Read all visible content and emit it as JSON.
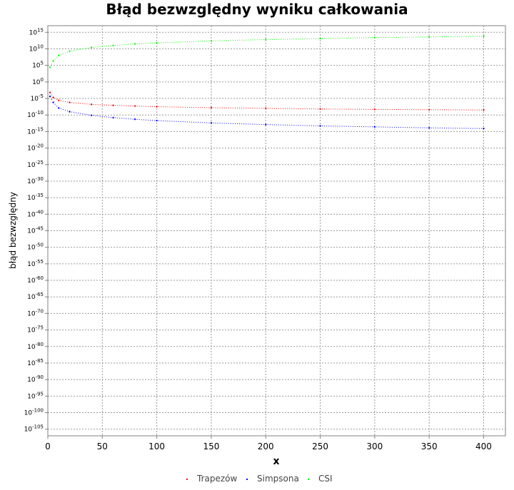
{
  "chart_data": {
    "type": "scatter",
    "title": "Błąd bezwzględny wyniku całkowania",
    "xlabel": "x",
    "ylabel": "błąd bezwzględny",
    "x_scale": "linear",
    "y_scale": "log",
    "xlim": [
      0,
      420
    ],
    "ylim_exponent": [
      -107,
      17
    ],
    "x_ticks": [
      0,
      50,
      100,
      150,
      200,
      250,
      300,
      350,
      400
    ],
    "y_ticks": [
      {
        "base": "10",
        "exp": "15"
      },
      {
        "base": "10",
        "exp": "10"
      },
      {
        "base": "10",
        "exp": "5"
      },
      {
        "base": "10",
        "exp": "0"
      },
      {
        "base": "10",
        "exp": "-5"
      },
      {
        "base": "10",
        "exp": "-10"
      },
      {
        "base": "10",
        "exp": "-15"
      },
      {
        "base": "10",
        "exp": "-20"
      },
      {
        "base": "10",
        "exp": "-25"
      },
      {
        "base": "10",
        "exp": "-30"
      },
      {
        "base": "10",
        "exp": "-35"
      },
      {
        "base": "10",
        "exp": "-40"
      },
      {
        "base": "10",
        "exp": "-45"
      },
      {
        "base": "10",
        "exp": "-50"
      },
      {
        "base": "10",
        "exp": "-55"
      },
      {
        "base": "10",
        "exp": "-60"
      },
      {
        "base": "10",
        "exp": "-65"
      },
      {
        "base": "10",
        "exp": "-70"
      },
      {
        "base": "10",
        "exp": "-75"
      },
      {
        "base": "10",
        "exp": "-80"
      },
      {
        "base": "10",
        "exp": "-85"
      },
      {
        "base": "10",
        "exp": "-90"
      },
      {
        "base": "10",
        "exp": "-95"
      },
      {
        "base": "10",
        "exp": "-100"
      },
      {
        "base": "10",
        "exp": "-105"
      }
    ],
    "grid": true,
    "legend_position": "bottom",
    "series": [
      {
        "name": "Trapezów",
        "color": "#ff0000",
        "x": [
          2,
          5,
          10,
          20,
          40,
          60,
          80,
          100,
          150,
          200,
          250,
          300,
          350,
          400
        ],
        "y_log10": [
          -3.2,
          -4.7,
          -5.6,
          -6.2,
          -6.8,
          -7.1,
          -7.3,
          -7.5,
          -7.8,
          -8.0,
          -8.2,
          -8.3,
          -8.4,
          -8.5
        ]
      },
      {
        "name": "Simpsona",
        "color": "#0000ff",
        "x": [
          2,
          5,
          10,
          20,
          40,
          60,
          80,
          100,
          150,
          200,
          250,
          300,
          350,
          400
        ],
        "y_log10": [
          -4.4,
          -6.2,
          -7.9,
          -9.0,
          -10.1,
          -10.8,
          -11.3,
          -11.7,
          -12.4,
          -12.9,
          -13.3,
          -13.6,
          -13.9,
          -14.1
        ]
      },
      {
        "name": "CSI",
        "color": "#00ff00",
        "x": [
          2,
          5,
          10,
          20,
          40,
          60,
          80,
          100,
          150,
          200,
          250,
          300,
          350,
          400
        ],
        "y_log10": [
          4.4,
          6.3,
          8.0,
          9.3,
          10.4,
          11.0,
          11.5,
          11.8,
          12.4,
          12.8,
          13.1,
          13.4,
          13.6,
          13.8
        ]
      }
    ]
  }
}
